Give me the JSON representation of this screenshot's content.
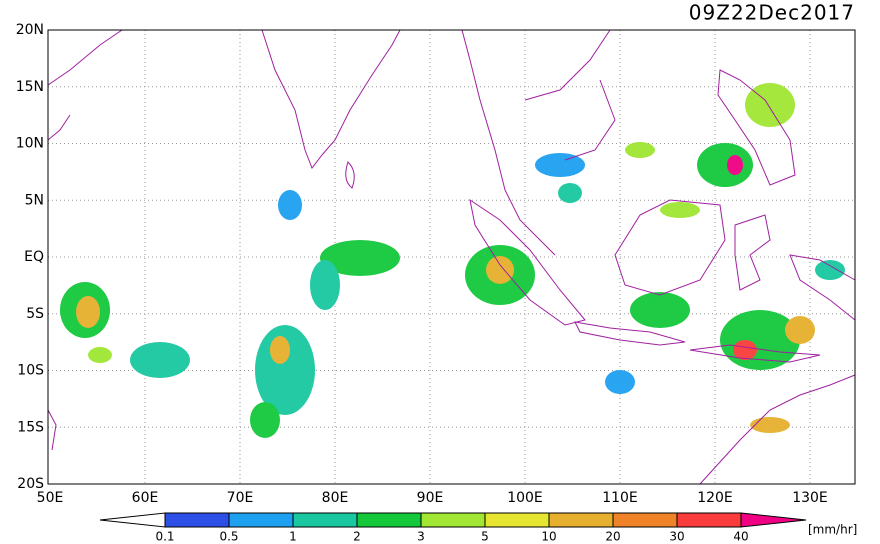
{
  "title": "09Z22Dec2017",
  "map": {
    "lat_labels": [
      "20N",
      "15N",
      "10N",
      "5N",
      "EQ",
      "5S",
      "10S",
      "15S",
      "20S"
    ],
    "lon_labels": [
      "50E",
      "60E",
      "70E",
      "80E",
      "90E",
      "100E",
      "110E",
      "120E",
      "130E"
    ]
  },
  "colorbar": {
    "labels": [
      "0.1",
      "0.5",
      "1",
      "2",
      "3",
      "5",
      "10",
      "20",
      "30",
      "40"
    ],
    "colors": [
      "#2c50e6",
      "#1ea0f0",
      "#19c8a0",
      "#14c83c",
      "#a0e632",
      "#e6e632",
      "#e6af2d",
      "#f08228",
      "#fa3c3c"
    ],
    "over_color": "#f00082",
    "unit": "[mm/hr]"
  }
}
